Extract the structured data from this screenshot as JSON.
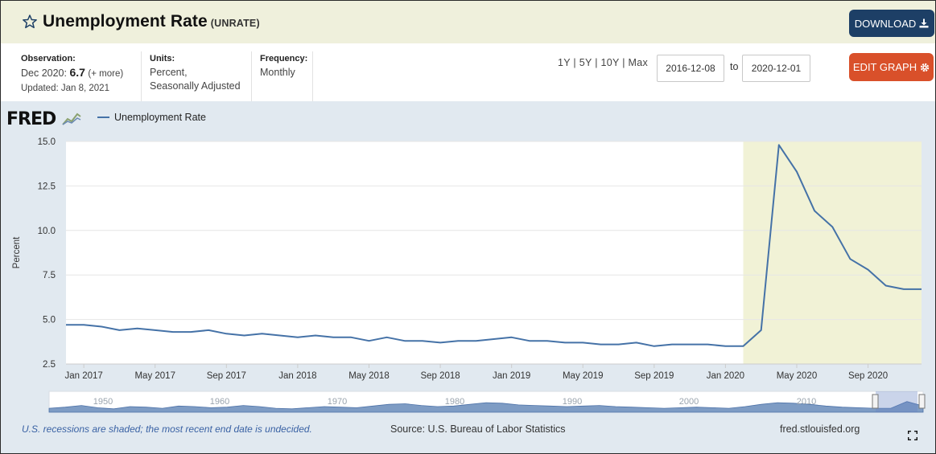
{
  "header": {
    "title": "Unemployment Rate",
    "series_id": "(UNRATE)",
    "download_label": "DOWNLOAD",
    "edit_label": "EDIT GRAPH"
  },
  "meta": {
    "observation_label": "Observation:",
    "observation_prefix": "Dec 2020:",
    "observation_value": "6.7",
    "observation_more": "(+ more)",
    "updated": "Updated: Jan 8, 2021",
    "units_label": "Units:",
    "units_line1": "Percent,",
    "units_line2": "Seasonally Adjusted",
    "frequency_label": "Frequency:",
    "frequency_value": "Monthly"
  },
  "range": {
    "links": "1Y | 5Y | 10Y | Max",
    "start": "2016-12-08",
    "to": "to",
    "end": "2020-12-01"
  },
  "legend": {
    "logo": "FRED",
    "series_name": "Unemployment Rate"
  },
  "colors": {
    "line": "#4572a7",
    "recession": "#f1f2d6",
    "download_bg": "#1d3f66",
    "edit_bg": "#d9502a",
    "panel_bg": "#e1e9f0",
    "header_bg": "#eff0dc"
  },
  "chart_data": {
    "type": "line",
    "ylabel": "Percent",
    "ylim": [
      2.5,
      15.0
    ],
    "yticks": [
      "15.0",
      "12.5",
      "10.0",
      "7.5",
      "5.0",
      "2.5"
    ],
    "xticks": [
      "Jan 2017",
      "May 2017",
      "Sep 2017",
      "Jan 2018",
      "May 2018",
      "Sep 2018",
      "Jan 2019",
      "May 2019",
      "Sep 2019",
      "Jan 2020",
      "May 2020",
      "Sep 2020"
    ],
    "x_start": "2016-12",
    "series": [
      {
        "name": "Unemployment Rate",
        "values": [
          4.7,
          4.7,
          4.6,
          4.4,
          4.5,
          4.4,
          4.3,
          4.3,
          4.4,
          4.2,
          4.1,
          4.2,
          4.1,
          4.0,
          4.1,
          4.0,
          4.0,
          3.8,
          4.0,
          3.8,
          3.8,
          3.7,
          3.8,
          3.8,
          3.9,
          4.0,
          3.8,
          3.8,
          3.7,
          3.7,
          3.6,
          3.6,
          3.7,
          3.5,
          3.6,
          3.6,
          3.6,
          3.5,
          3.5,
          4.4,
          14.8,
          13.3,
          11.1,
          10.2,
          8.4,
          7.8,
          6.9,
          6.7,
          6.7
        ]
      }
    ],
    "recession": {
      "start": "2020-02",
      "end": "2020-12"
    },
    "grid": true,
    "navigator_labels": [
      "1950",
      "1960",
      "1970",
      "1980",
      "1990",
      "2000",
      "2010"
    ]
  },
  "footer": {
    "recession_note": "U.S. recessions are shaded; the most recent end date is undecided.",
    "source": "Source: U.S. Bureau of Labor Statistics",
    "site": "fred.stlouisfed.org"
  }
}
